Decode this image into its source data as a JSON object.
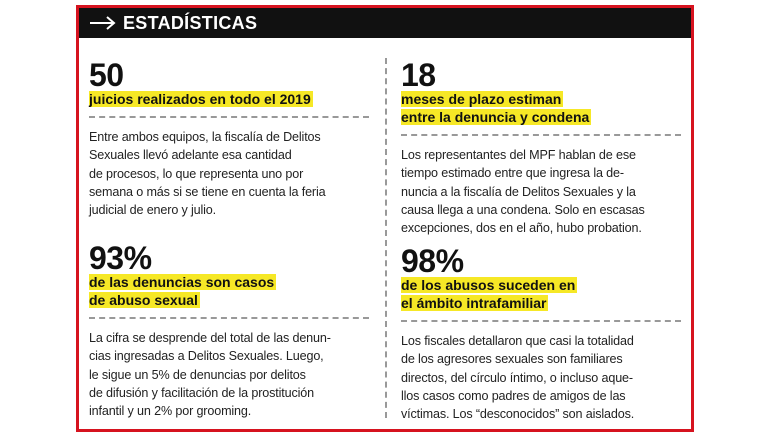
{
  "header": {
    "title": "ESTADÍSTICAS"
  },
  "stats": [
    {
      "number": "50",
      "subtitle": [
        "juicios realizados en todo el 2019"
      ],
      "body": [
        "Entre ambos equipos, la fiscalía de Delitos",
        "Sexuales llevó adelante esa cantidad",
        "de procesos, lo que representa uno por",
        "semana o más si se tiene en cuenta la feria",
        "judicial de enero y julio."
      ]
    },
    {
      "number": "18",
      "subtitle": [
        "meses de plazo estiman",
        "entre la denuncia y condena"
      ],
      "body": [
        "Los representantes del MPF hablan de ese",
        "tiempo estimado entre que ingresa la de-",
        "nuncia a la fiscalía de Delitos Sexuales y la",
        "causa llega a una condena. Solo en escasas",
        "excepciones, dos en el año, hubo probation."
      ]
    },
    {
      "number": "93%",
      "subtitle": [
        "de las denuncias son casos",
        "de abuso sexual"
      ],
      "body": [
        "La cifra se desprende del total de las denun-",
        "cias ingresadas a Delitos Sexuales. Luego,",
        "le sigue un 5% de denuncias por delitos",
        "de difusión y facilitación de la prostitución",
        "infantil y un 2% por grooming."
      ]
    },
    {
      "number": "98%",
      "subtitle": [
        "de los abusos suceden en",
        "el ámbito intrafamiliar"
      ],
      "body": [
        "Los fiscales detallaron que casi la totalidad",
        "de los agresores sexuales son familiares",
        "directos, del círculo íntimo, o incluso aque-",
        "llos casos como padres de amigos de las",
        "víctimas. Los “desconocidos” son aislados."
      ]
    }
  ]
}
